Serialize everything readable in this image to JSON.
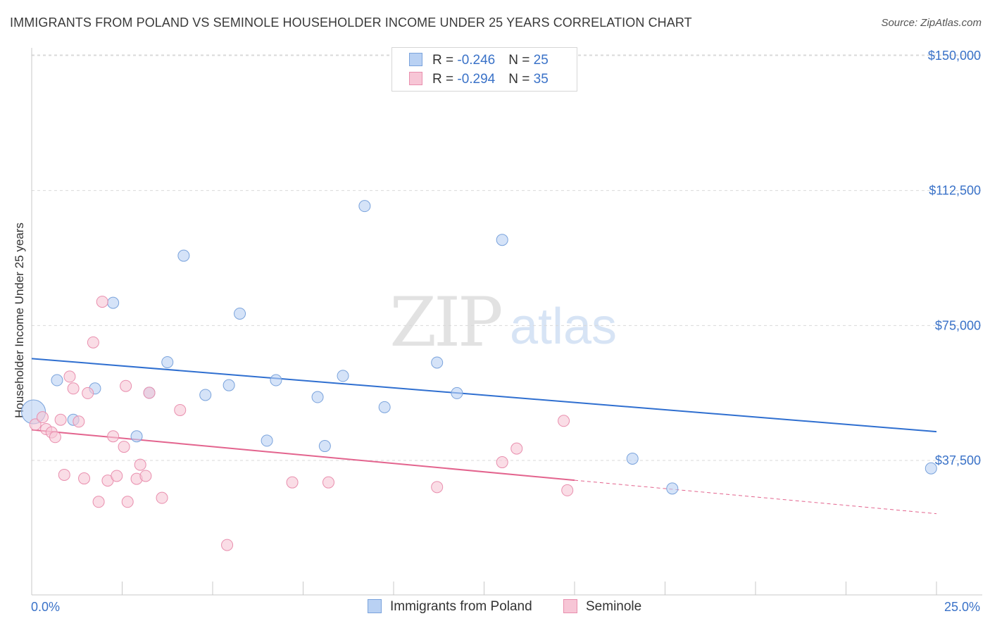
{
  "title": "IMMIGRANTS FROM POLAND VS SEMINOLE HOUSEHOLDER INCOME UNDER 25 YEARS CORRELATION CHART",
  "source": "Source: ZipAtlas.com",
  "watermark": {
    "zip": "ZIP",
    "atlas": "atlas"
  },
  "colors": {
    "blue_fill": "#b9d1f3",
    "blue_stroke": "#7aa3dc",
    "blue_line": "#2f6fd0",
    "pink_fill": "#f7c6d6",
    "pink_stroke": "#e98fae",
    "pink_line": "#e3648e",
    "axis_text": "#3a72c8",
    "grid": "#d9d9d9"
  },
  "stats": [
    {
      "r_label": "R = ",
      "r_value": "-0.246",
      "n_label": "N = ",
      "n_value": "25"
    },
    {
      "r_label": "R = ",
      "r_value": "-0.294",
      "n_label": "N = ",
      "n_value": "35"
    }
  ],
  "chart_data": {
    "type": "scatter",
    "title": "IMMIGRANTS FROM POLAND VS SEMINOLE HOUSEHOLDER INCOME UNDER 25 YEARS CORRELATION CHART",
    "xlabel": "",
    "ylabel": "Householder Income Under 25 years",
    "xlim": [
      0,
      25
    ],
    "ylim": [
      0,
      155000
    ],
    "x_tick_labels": [
      "0.0%",
      "25.0%"
    ],
    "y_ticks": [
      37500,
      75000,
      112500,
      150000
    ],
    "y_tick_labels": [
      "$37,500",
      "$75,000",
      "$112,500",
      "$150,000"
    ],
    "grid": "horizontal dashed",
    "legend_position": "bottom-center",
    "series": [
      {
        "name": "Immigrants from Poland",
        "color": "blue",
        "points": [
          {
            "x": 0.05,
            "y": 51000,
            "big": true
          },
          {
            "x": 0.7,
            "y": 59800
          },
          {
            "x": 1.15,
            "y": 48800
          },
          {
            "x": 1.75,
            "y": 57500
          },
          {
            "x": 2.25,
            "y": 81300
          },
          {
            "x": 2.9,
            "y": 44200
          },
          {
            "x": 3.25,
            "y": 56300
          },
          {
            "x": 3.75,
            "y": 64800
          },
          {
            "x": 4.2,
            "y": 94400
          },
          {
            "x": 4.8,
            "y": 55700
          },
          {
            "x": 5.45,
            "y": 58400
          },
          {
            "x": 5.75,
            "y": 78300
          },
          {
            "x": 6.5,
            "y": 43000
          },
          {
            "x": 6.75,
            "y": 59800
          },
          {
            "x": 7.9,
            "y": 55100
          },
          {
            "x": 8.1,
            "y": 41500
          },
          {
            "x": 8.6,
            "y": 61000
          },
          {
            "x": 9.2,
            "y": 108200
          },
          {
            "x": 9.75,
            "y": 52300
          },
          {
            "x": 11.2,
            "y": 64700
          },
          {
            "x": 11.75,
            "y": 56200
          },
          {
            "x": 13.0,
            "y": 98800
          },
          {
            "x": 16.6,
            "y": 38000
          },
          {
            "x": 17.7,
            "y": 29700
          },
          {
            "x": 24.85,
            "y": 35300
          }
        ],
        "trend": {
          "x0": 0,
          "y0": 65800,
          "x1": 25,
          "y1": 45500
        }
      },
      {
        "name": "Seminole",
        "color": "pink",
        "points": [
          {
            "x": 0.1,
            "y": 47500
          },
          {
            "x": 0.3,
            "y": 49500
          },
          {
            "x": 0.4,
            "y": 46200
          },
          {
            "x": 0.55,
            "y": 45300
          },
          {
            "x": 0.65,
            "y": 44000
          },
          {
            "x": 0.8,
            "y": 48800
          },
          {
            "x": 0.9,
            "y": 33500
          },
          {
            "x": 1.05,
            "y": 60800
          },
          {
            "x": 1.15,
            "y": 57500
          },
          {
            "x": 1.3,
            "y": 48300
          },
          {
            "x": 1.45,
            "y": 32500
          },
          {
            "x": 1.55,
            "y": 56200
          },
          {
            "x": 1.7,
            "y": 70300
          },
          {
            "x": 1.85,
            "y": 26000
          },
          {
            "x": 1.95,
            "y": 81600
          },
          {
            "x": 2.1,
            "y": 31900
          },
          {
            "x": 2.25,
            "y": 44200
          },
          {
            "x": 2.35,
            "y": 33200
          },
          {
            "x": 2.55,
            "y": 41300
          },
          {
            "x": 2.6,
            "y": 58200
          },
          {
            "x": 2.65,
            "y": 26000
          },
          {
            "x": 2.9,
            "y": 32400
          },
          {
            "x": 3.0,
            "y": 36300
          },
          {
            "x": 3.15,
            "y": 33200
          },
          {
            "x": 3.25,
            "y": 56300
          },
          {
            "x": 3.6,
            "y": 27100
          },
          {
            "x": 4.1,
            "y": 51500
          },
          {
            "x": 5.4,
            "y": 14000
          },
          {
            "x": 7.2,
            "y": 31400
          },
          {
            "x": 8.2,
            "y": 31400
          },
          {
            "x": 11.2,
            "y": 30100
          },
          {
            "x": 13.0,
            "y": 37000
          },
          {
            "x": 13.4,
            "y": 40800
          },
          {
            "x": 14.7,
            "y": 48500
          },
          {
            "x": 14.8,
            "y": 29200
          }
        ],
        "trend": {
          "x0": 0,
          "y0": 46000,
          "x1": 15,
          "y1": 32000
        },
        "trend_extension": {
          "x0": 15,
          "y0": 32000,
          "x1": 25,
          "y1": 22700
        }
      }
    ]
  },
  "legend": [
    {
      "label": "Immigrants from Poland"
    },
    {
      "label": "Seminole"
    }
  ]
}
